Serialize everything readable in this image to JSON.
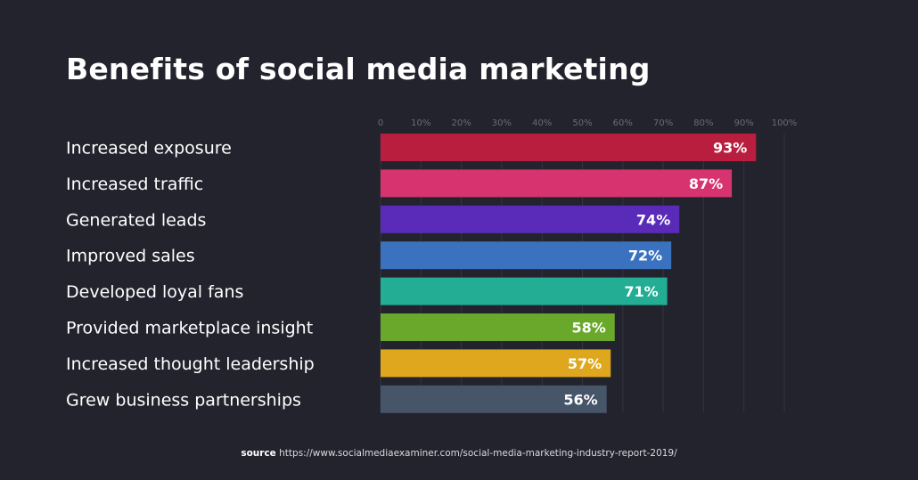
{
  "chart_data": {
    "type": "bar",
    "orientation": "horizontal",
    "title": "Benefits of social media marketing",
    "categories": [
      "Increased exposure",
      "Increased traffic",
      "Generated leads",
      "Improved sales",
      "Developed loyal fans",
      "Provided marketplace insight",
      "Increased thought leadership",
      "Grew business partnerships"
    ],
    "values": [
      93,
      87,
      74,
      72,
      71,
      58,
      57,
      56
    ],
    "data_labels": [
      "93%",
      "87%",
      "74%",
      "72%",
      "71%",
      "58%",
      "57%",
      "56%"
    ],
    "colors": [
      "#b91e3f",
      "#d6336f",
      "#5a2bb8",
      "#3b72bf",
      "#22ad94",
      "#6aa82c",
      "#dfa71d",
      "#475569"
    ],
    "x_ticks": [
      "0",
      "10%",
      "20%",
      "30%",
      "40%",
      "50%",
      "60%",
      "70%",
      "80%",
      "90%",
      "100%"
    ],
    "xlim": [
      0,
      100
    ],
    "grid": true,
    "legend": "none"
  },
  "source": {
    "label": "source",
    "url": "https://www.socialmediaexaminer.com/social-media-marketing-industry-report-2019/"
  },
  "colors": {
    "background": "#23232e",
    "grid": "#34343f",
    "tick_text": "#6b6b78"
  }
}
